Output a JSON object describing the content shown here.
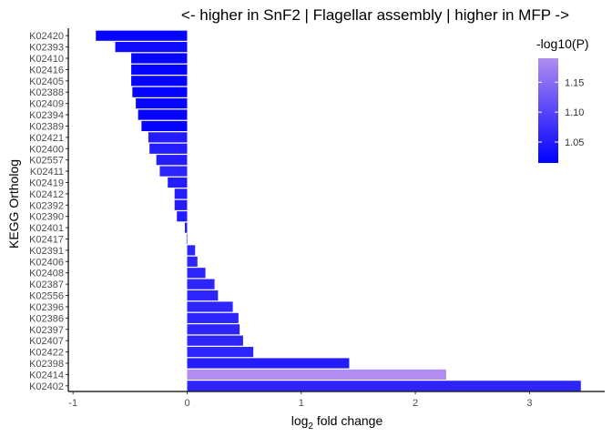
{
  "chart_data": {
    "type": "bar",
    "orientation": "horizontal",
    "title": "<- higher in SnF2 | Flagellar assembly | higher in MFP ->",
    "xlabel_main": "log",
    "xlabel_sub": "2",
    "xlabel_rest": " fold change",
    "ylabel": "KEGG Ortholog",
    "xlim": [
      -1.0,
      3.5
    ],
    "xticks": [
      -1,
      0,
      1,
      2,
      3
    ],
    "xtick_labels": [
      "-1",
      "0",
      "1",
      "2",
      "3"
    ],
    "categories": [
      "K02420",
      "K02393",
      "K02410",
      "K02416",
      "K02405",
      "K02388",
      "K02409",
      "K02394",
      "K02389",
      "K02421",
      "K02400",
      "K02557",
      "K02411",
      "K02419",
      "K02412",
      "K02392",
      "K02390",
      "K02401",
      "K02417",
      "K02391",
      "K02406",
      "K02408",
      "K02387",
      "K02556",
      "K02396",
      "K02386",
      "K02397",
      "K02407",
      "K02422",
      "K02398",
      "K02414",
      "K02402"
    ],
    "values": [
      -0.8,
      -0.63,
      -0.49,
      -0.49,
      -0.49,
      -0.48,
      -0.45,
      -0.43,
      -0.4,
      -0.34,
      -0.33,
      -0.27,
      -0.24,
      -0.17,
      -0.11,
      -0.11,
      -0.09,
      -0.02,
      -0.005,
      0.07,
      0.09,
      0.16,
      0.24,
      0.27,
      0.4,
      0.45,
      0.46,
      0.49,
      0.58,
      1.42,
      2.27,
      3.45
    ],
    "color_values": [
      1.02,
      1.03,
      1.02,
      1.02,
      1.02,
      1.02,
      1.02,
      1.02,
      1.02,
      1.05,
      1.05,
      1.05,
      1.06,
      1.05,
      1.05,
      1.05,
      1.05,
      1.05,
      1.05,
      1.06,
      1.06,
      1.06,
      1.06,
      1.06,
      1.06,
      1.06,
      1.06,
      1.06,
      1.06,
      1.05,
      1.19,
      1.06
    ],
    "legend": {
      "title": "-log10(P)",
      "position": "top-right",
      "range": [
        1.015,
        1.19
      ],
      "ticks": [
        1.05,
        1.1,
        1.15
      ],
      "tick_labels": [
        "1.05",
        "1.10",
        "1.15"
      ],
      "color_low": "#0000ff",
      "color_high": "#b08ef0"
    },
    "grid": false,
    "colors": {
      "axis": "#000000",
      "tick_text": "#4d4d4d"
    }
  }
}
